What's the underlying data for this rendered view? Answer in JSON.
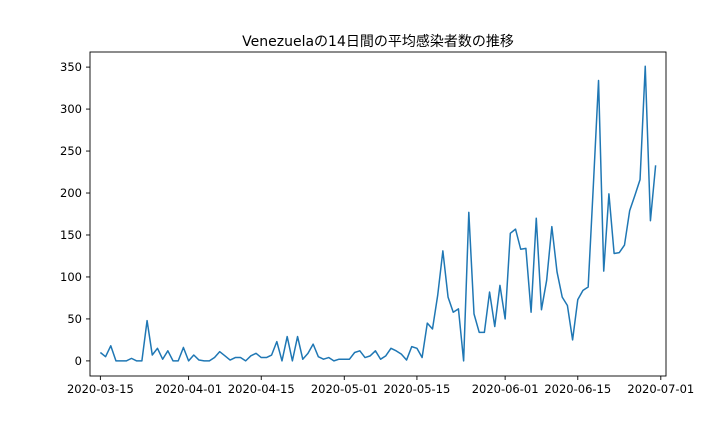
{
  "chart_data": {
    "type": "line",
    "title": "Venezuelaの14日間の平均感染者数の推移",
    "xlabel": "",
    "ylabel": "",
    "x_start": "2020-03-15",
    "x_end": "2020-06-30",
    "x_ticks": [
      "2020-03-15",
      "2020-04-01",
      "2020-04-15",
      "2020-05-01",
      "2020-05-15",
      "2020-06-01",
      "2020-06-15",
      "2020-07-01"
    ],
    "y_ticks": [
      0,
      50,
      100,
      150,
      200,
      250,
      300,
      350
    ],
    "xlim": [
      "2020-03-13",
      "2020-07-02"
    ],
    "ylim": [
      -18,
      368
    ],
    "grid": false,
    "legend": "none",
    "color": "#1f77b4",
    "series": [
      {
        "values": [
          10,
          5,
          18,
          0,
          0,
          0,
          3,
          0,
          0,
          48,
          7,
          15,
          2,
          12,
          0,
          0,
          16,
          0,
          7,
          1,
          0,
          0,
          4,
          11,
          6,
          1,
          4,
          4,
          0,
          6,
          9,
          4,
          4,
          7,
          23,
          0,
          29,
          0,
          29,
          2,
          9,
          20,
          5,
          2,
          4,
          0,
          2,
          2,
          2,
          10,
          12,
          4,
          6,
          12,
          2,
          6,
          15,
          12,
          8,
          1,
          17,
          15,
          4,
          45,
          38,
          78,
          131,
          76,
          58,
          62,
          0,
          177,
          56,
          34,
          34,
          82,
          41,
          90,
          50,
          152,
          157,
          133,
          134,
          58,
          170,
          61,
          96,
          160,
          106,
          76,
          66,
          25,
          73,
          84,
          88,
          209,
          334,
          107,
          199,
          128,
          129,
          138,
          179,
          197,
          216,
          351,
          167,
          233
        ]
      }
    ]
  }
}
